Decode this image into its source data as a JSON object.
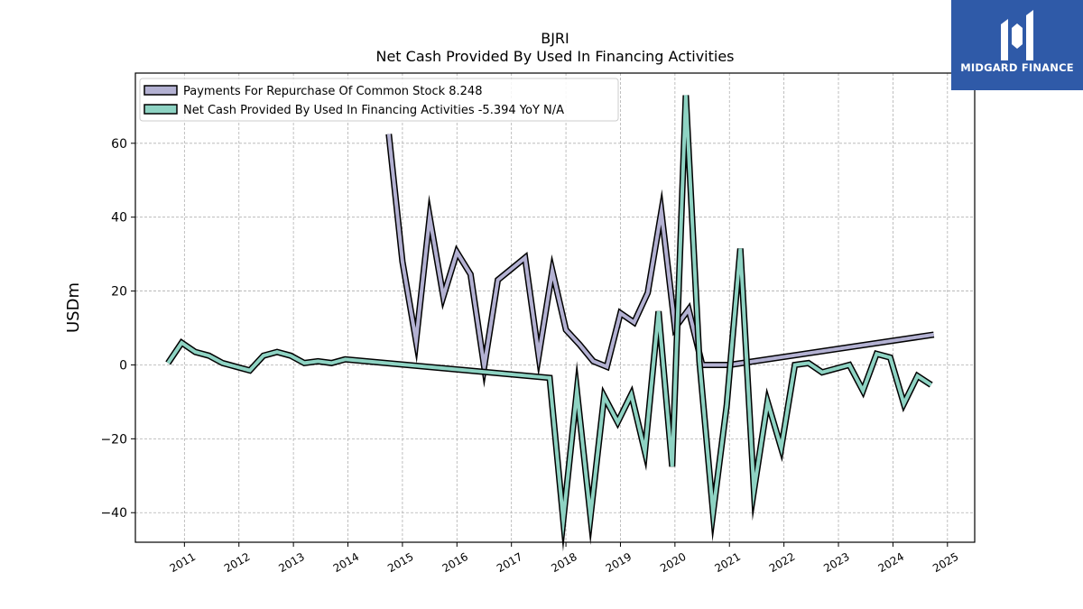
{
  "brand": {
    "name": "MIDGARD FINANCE",
    "background": "#2f5aa8"
  },
  "chart_data": {
    "type": "line",
    "title": "BJRI",
    "subtitle": "Net Cash Provided By Used In Financing Activities",
    "xlabel": "",
    "ylabel": "USDm",
    "xlim": [
      2010.1,
      2025.5
    ],
    "ylim": [
      -48,
      79
    ],
    "x_ticks": [
      "2011",
      "2012",
      "2013",
      "2014",
      "2015",
      "2016",
      "2017",
      "2018",
      "2019",
      "2020",
      "2021",
      "2022",
      "2023",
      "2024",
      "2025"
    ],
    "y_ticks": [
      -40,
      -20,
      0,
      20,
      40,
      60
    ],
    "y_tick_labels": [
      "−40",
      "−20",
      "0",
      "20",
      "40",
      "60"
    ],
    "grid": true,
    "legend_position": "top-left",
    "series": [
      {
        "name": "Payments For Repurchase Of Common Stock",
        "legend_value": "8.248",
        "legend_label": "Payments For Repurchase Of Common Stock  8.248",
        "color": "#b3b1d2",
        "x": [
          2014.75,
          2015.0,
          2015.25,
          2015.5,
          2015.75,
          2016.0,
          2016.25,
          2016.5,
          2016.75,
          2017.0,
          2017.25,
          2017.5,
          2017.75,
          2018.0,
          2018.25,
          2018.5,
          2018.75,
          2019.0,
          2019.25,
          2019.5,
          2019.75,
          2020.0,
          2020.25,
          2020.5,
          2020.75,
          2021.0,
          2024.75
        ],
        "y": [
          62.5,
          28.0,
          6.5,
          40.0,
          18.5,
          30.5,
          24.5,
          -0.5,
          23.0,
          26.0,
          29.0,
          2.5,
          25.5,
          9.5,
          5.5,
          1.0,
          -0.5,
          14.0,
          11.5,
          19.5,
          41.5,
          10.0,
          15.0,
          0.0,
          0.0,
          0.0,
          8.2
        ]
      },
      {
        "name": "Net Cash Provided By Used In Financing Activities",
        "legend_value": "-5.394",
        "legend_label": "Net Cash Provided By Used In Financing Activities  -5.394 YoY N/A",
        "color": "#8ed3c3",
        "x": [
          2010.7,
          2010.95,
          2011.2,
          2011.45,
          2011.7,
          2011.95,
          2012.2,
          2012.45,
          2012.7,
          2012.95,
          2013.2,
          2013.45,
          2013.7,
          2013.95,
          2017.7,
          2017.95,
          2018.2,
          2018.45,
          2018.7,
          2018.95,
          2019.2,
          2019.45,
          2019.7,
          2019.95,
          2020.2,
          2020.45,
          2020.7,
          2020.95,
          2021.2,
          2021.45,
          2021.7,
          2021.95,
          2022.2,
          2022.45,
          2022.7,
          2022.95,
          2023.2,
          2023.45,
          2023.7,
          2023.95,
          2024.2,
          2024.45,
          2024.7
        ],
        "y": [
          0.5,
          6.0,
          3.5,
          2.5,
          0.5,
          -0.5,
          -1.5,
          2.5,
          3.5,
          2.5,
          0.5,
          1.0,
          0.5,
          1.5,
          -3.5,
          -42.0,
          -7.0,
          -41.0,
          -8.5,
          -15.5,
          -8.0,
          -23.5,
          14.5,
          -27.5,
          73.0,
          1.0,
          -40.0,
          -11.0,
          31.5,
          -34.0,
          -10.0,
          -22.5,
          0.0,
          0.5,
          -2.0,
          -1.0,
          0.0,
          -7.0,
          3.0,
          2.0,
          -10.5,
          -3.0,
          -5.4
        ]
      }
    ]
  }
}
